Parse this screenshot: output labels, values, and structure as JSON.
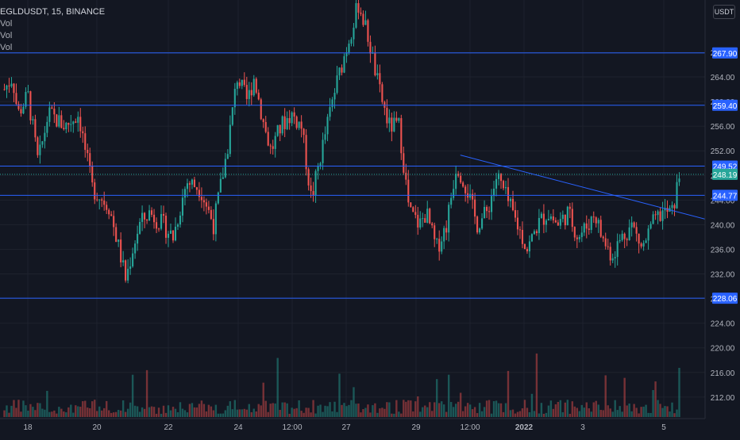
{
  "header": {
    "symbol_line": "EGLDUSDT, 15, BINANCE",
    "indicators": [
      "Vol",
      "Vol",
      "Vol"
    ],
    "quote_currency": "USDT"
  },
  "colors": {
    "background": "#131722",
    "up": "#26a69a",
    "down": "#ef5350",
    "hline": "#2962ff",
    "trendline": "#2962ff",
    "axis_text": "#b2b5be",
    "current_price_tag": "#26a69a",
    "level_tag": "#2962ff"
  },
  "chart_data": {
    "type": "candlestick",
    "price_axis": {
      "ylim": [
        208.5,
        276.5
      ],
      "ticks": [
        212,
        216,
        220,
        224,
        228,
        232,
        236,
        240,
        244,
        248,
        252,
        256,
        260,
        264,
        268
      ],
      "tick_labels": [
        "212.00",
        "216.00",
        "220.00",
        "224.00",
        "228.00",
        "232.00",
        "236.00",
        "240.00",
        "244.00",
        "248.00",
        "252.00",
        "256.00",
        "260.00",
        "264.00",
        "268.00"
      ]
    },
    "time_axis": {
      "labels": [
        "18",
        "20",
        "22",
        "24",
        "12:00",
        "27",
        "29",
        "12:00",
        "2022",
        "3",
        "5"
      ]
    },
    "price_path": [
      [
        0,
        262
      ],
      [
        0.012,
        264
      ],
      [
        0.02,
        258
      ],
      [
        0.035,
        261
      ],
      [
        0.05,
        250
      ],
      [
        0.065,
        258
      ],
      [
        0.09,
        256
      ],
      [
        0.11,
        258
      ],
      [
        0.13,
        246
      ],
      [
        0.155,
        243
      ],
      [
        0.17,
        236
      ],
      [
        0.18,
        231
      ],
      [
        0.19,
        236
      ],
      [
        0.2,
        240
      ],
      [
        0.215,
        242
      ],
      [
        0.235,
        240
      ],
      [
        0.25,
        238
      ],
      [
        0.27,
        247
      ],
      [
        0.29,
        246
      ],
      [
        0.31,
        240
      ],
      [
        0.33,
        252
      ],
      [
        0.345,
        264
      ],
      [
        0.36,
        260
      ],
      [
        0.37,
        264
      ],
      [
        0.385,
        256
      ],
      [
        0.395,
        252
      ],
      [
        0.41,
        256
      ],
      [
        0.425,
        258
      ],
      [
        0.44,
        256
      ],
      [
        0.455,
        244
      ],
      [
        0.47,
        252
      ],
      [
        0.49,
        262
      ],
      [
        0.51,
        270
      ],
      [
        0.525,
        276
      ],
      [
        0.54,
        270
      ],
      [
        0.555,
        262
      ],
      [
        0.57,
        256
      ],
      [
        0.585,
        256
      ],
      [
        0.6,
        242
      ],
      [
        0.615,
        240
      ],
      [
        0.625,
        242
      ],
      [
        0.64,
        236
      ],
      [
        0.655,
        240
      ],
      [
        0.67,
        250
      ],
      [
        0.685,
        246
      ],
      [
        0.7,
        240
      ],
      [
        0.715,
        242
      ],
      [
        0.73,
        248
      ],
      [
        0.745,
        244
      ],
      [
        0.76,
        240
      ],
      [
        0.775,
        236
      ],
      [
        0.79,
        240
      ],
      [
        0.805,
        242
      ],
      [
        0.82,
        240
      ],
      [
        0.835,
        242
      ],
      [
        0.85,
        238
      ],
      [
        0.865,
        240
      ],
      [
        0.875,
        242
      ],
      [
        0.885,
        238
      ],
      [
        0.9,
        235
      ],
      [
        0.915,
        238
      ],
      [
        0.93,
        240
      ],
      [
        0.945,
        236
      ],
      [
        0.96,
        240
      ],
      [
        0.975,
        242
      ],
      [
        0.99,
        242
      ],
      [
        1,
        248
      ]
    ],
    "horizontal_levels": [
      {
        "price": 267.9,
        "label": "267.90"
      },
      {
        "price": 259.4,
        "label": "259.40"
      },
      {
        "price": 249.52,
        "label": "249.52"
      },
      {
        "price": 244.77,
        "label": "244.77"
      },
      {
        "price": 228.06,
        "label": "228.06"
      }
    ],
    "current_price": {
      "price": 248.19,
      "label": "248.19"
    },
    "trendline": {
      "from": {
        "t": 0.675,
        "price": 251.3
      },
      "to": {
        "t": 1.04,
        "price": 240.8
      }
    },
    "volume": {
      "note": "volume histogram at bottom, same candle colors"
    }
  }
}
